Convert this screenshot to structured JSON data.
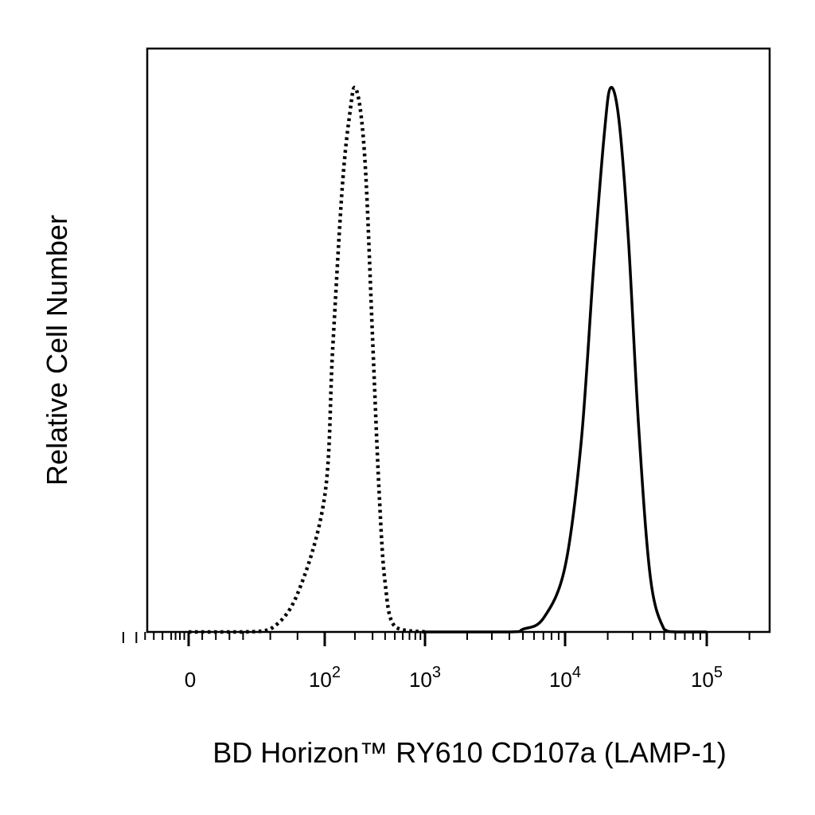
{
  "chart_data": {
    "type": "line",
    "title": "",
    "xlabel": "BD Horizon™ RY610 CD107a (LAMP-1)",
    "ylabel": "Relative Cell Number",
    "x_scale": "biexponential",
    "x_ticks": [
      {
        "value": 0,
        "base": "0",
        "exp": ""
      },
      {
        "value": 100,
        "base": "10",
        "exp": "2"
      },
      {
        "value": 1000,
        "base": "10",
        "exp": "3"
      },
      {
        "value": 10000,
        "base": "10",
        "exp": "4"
      },
      {
        "value": 100000,
        "base": "10",
        "exp": "5"
      }
    ],
    "ylim": [
      0,
      100
    ],
    "grid": false,
    "legend": "none",
    "series": [
      {
        "style": "dotted",
        "color": "#000000",
        "x": [
          0,
          40,
          60,
          80,
          100,
          120,
          150,
          180,
          200,
          230,
          260,
          300,
          350,
          400,
          500,
          1000
        ],
        "y": [
          0,
          0,
          0.5,
          7,
          25,
          52,
          82,
          96,
          100,
          95,
          82,
          54,
          25,
          9,
          1,
          0
        ]
      },
      {
        "style": "solid",
        "color": "#000000",
        "x": [
          1000,
          4000,
          5000,
          7000,
          10000,
          13000,
          16000,
          19000,
          21000,
          24000,
          28000,
          33000,
          40000,
          50000,
          60000,
          100000
        ],
        "y": [
          0,
          0,
          0.5,
          2.5,
          12,
          35,
          68,
          92,
          100,
          94,
          72,
          38,
          10,
          0.5,
          0,
          0
        ]
      }
    ]
  }
}
